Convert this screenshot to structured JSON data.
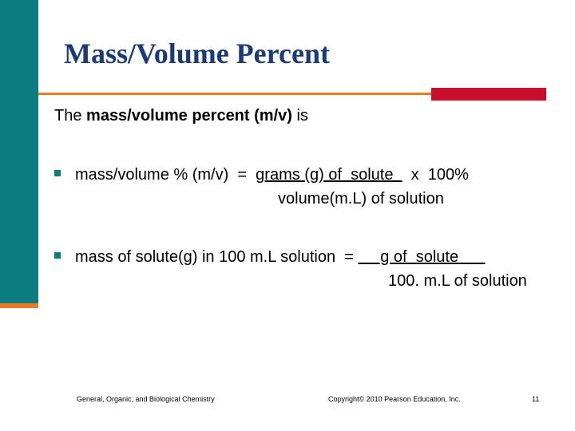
{
  "slide": {
    "title": "Mass/Volume Percent",
    "intro": {
      "prefix": "The ",
      "bold_term": "mass/volume percent (m/v)",
      "suffix": " is"
    },
    "bullets": [
      {
        "lead": "mass/volume % (m/v)  =  ",
        "numerator": "grams (g) of  solute  ",
        "trail": "  x  100%",
        "denominator": "volume(m.L) of solution"
      },
      {
        "lead": "mass of solute(g) in 100 m.L solution  = ",
        "numerator": "     g of  solute      ",
        "denominator": "100. m.L of solution"
      }
    ],
    "footer": {
      "left": "General, Organic, and Biological Chemistry",
      "center": "Copyright© 2010 Pearson Education, Inc.",
      "page_number": "11"
    }
  },
  "colors": {
    "sidebar": "#0a7b7f",
    "accent_orange": "#e97a1f",
    "accent_red": "#c8102e",
    "title_blue": "#1a3a78"
  }
}
